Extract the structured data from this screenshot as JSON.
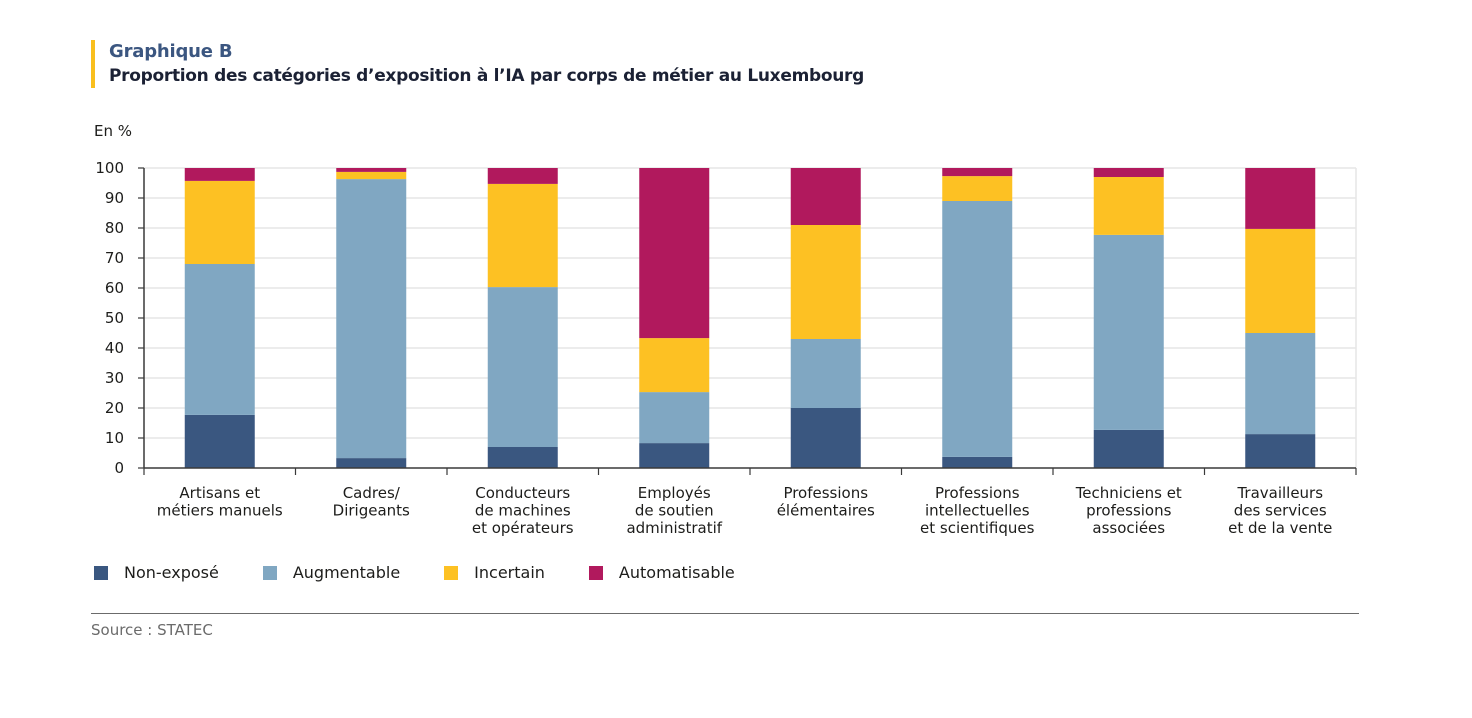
{
  "header": {
    "title": "Graphique B",
    "subtitle": "Proportion des catégories d’exposition à l’IA par corps de métier au Luxembourg"
  },
  "unit_label": "En %",
  "colors": {
    "accent_bar": "#f9bf1e",
    "title": "#3b5680"
  },
  "chart_data": {
    "type": "bar",
    "stacked": true,
    "title": "Proportion des catégories d’exposition à l’IA par corps de métier au Luxembourg",
    "xlabel": "",
    "ylabel": "En %",
    "ylim": [
      0,
      100
    ],
    "yticks": [
      0,
      10,
      20,
      30,
      40,
      50,
      60,
      70,
      80,
      90,
      100
    ],
    "grid": true,
    "legend_position": "bottom-left",
    "categories": [
      [
        "Artisans et",
        "métiers manuels"
      ],
      [
        "Cadres/",
        "Dirigeants"
      ],
      [
        "Conducteurs",
        "de machines",
        "et opérateurs"
      ],
      [
        "Employés",
        "de soutien",
        "administratif"
      ],
      [
        "Professions",
        "élémentaires"
      ],
      [
        "Professions",
        "intellectuelles",
        "et scientifiques"
      ],
      [
        "Techniciens et",
        "professions",
        "associées"
      ],
      [
        "Travailleurs",
        "des services",
        "et de la vente"
      ]
    ],
    "series": [
      {
        "name": "Non-exposé",
        "color": "#3a5780",
        "values": [
          17.7,
          3.3,
          7.0,
          8.3,
          20.0,
          3.7,
          12.7,
          11.3
        ]
      },
      {
        "name": "Augmentable",
        "color": "#80a7c2",
        "values": [
          50.3,
          93.0,
          53.3,
          17.0,
          23.0,
          85.3,
          65.0,
          33.7
        ]
      },
      {
        "name": "Incertain",
        "color": "#fdc123",
        "values": [
          27.7,
          2.4,
          34.4,
          18.0,
          38.0,
          8.3,
          19.3,
          34.7
        ]
      },
      {
        "name": "Automatisable",
        "color": "#b1195d",
        "values": [
          4.3,
          1.3,
          5.3,
          56.7,
          19.0,
          2.7,
          3.0,
          20.3
        ]
      }
    ]
  },
  "source": "Source : STATEC"
}
